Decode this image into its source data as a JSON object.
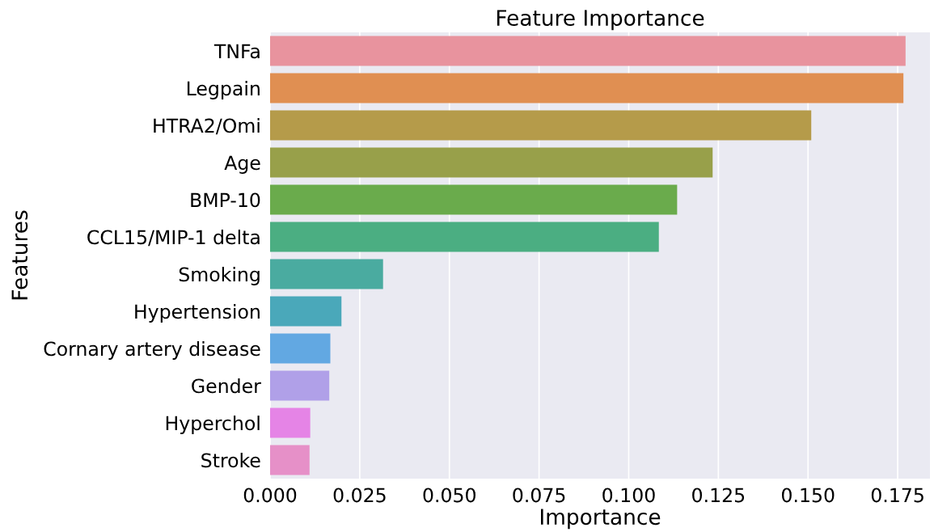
{
  "chart_data": {
    "type": "bar",
    "orientation": "horizontal",
    "title": "Feature Importance",
    "xlabel": "Importance",
    "ylabel": "Features",
    "categories": [
      "TNFa",
      "Legpain",
      "HTRA2/Omi",
      "Age",
      "BMP-10",
      "CCL15/MIP-1 delta",
      "Smoking",
      "Hypertension",
      "Cornary artery disease",
      "Gender",
      "Hyperchol",
      "Stroke"
    ],
    "values": [
      0.1772,
      0.1766,
      0.1509,
      0.1234,
      0.1135,
      0.1084,
      0.0315,
      0.0199,
      0.0168,
      0.0165,
      0.0112,
      0.011
    ],
    "colors": [
      "#e8939e",
      "#e08f52",
      "#b59b4a",
      "#98a04a",
      "#6aab4c",
      "#4bae82",
      "#4aaba0",
      "#4aa8ba",
      "#62a8e2",
      "#b0a0e8",
      "#e584e6",
      "#e690c8"
    ],
    "xlim": [
      0,
      0.184
    ],
    "xticks": [
      {
        "value": 0,
        "label": "0.000"
      },
      {
        "value": 0.025,
        "label": "0.025"
      },
      {
        "value": 0.05,
        "label": "0.050"
      },
      {
        "value": 0.075,
        "label": "0.075"
      },
      {
        "value": 0.1,
        "label": "0.100"
      },
      {
        "value": 0.125,
        "label": "0.125"
      },
      {
        "value": 0.15,
        "label": "0.150"
      },
      {
        "value": 0.175,
        "label": "0.175"
      }
    ],
    "grid": "x"
  }
}
